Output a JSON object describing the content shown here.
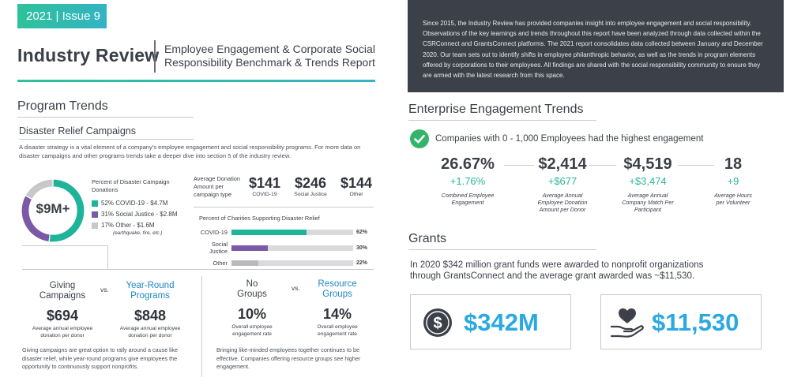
{
  "header": {
    "issue": "2021 | Issue 9",
    "title": "Industry Review",
    "subtitle_line1": "Employee Engagement & Corporate Social",
    "subtitle_line2": "Responsibility Benchmark & Trends Report"
  },
  "intro": "Since 2015, the Industry Review has provided companies insight into employee engagement and social responsibility. Observations of the key learnings and trends throughout this report have been analyzed through data collected within the CSRConnect and GrantsConnect platforms. The 2021 report consolidates data collected between January and December 2020. Our team sets out to identify shifts in employee philanthropic behavior, as well as the trends in program elements offered by corporations to their employees. All findings are shared with the social responsibility community to ensure they are armed with the latest research from this space.",
  "program_trends": {
    "heading": "Program Trends",
    "disaster": {
      "heading": "Disaster Relief Campaigns",
      "body": "A disaster strategy is a vital element of a company's employee engagement and social responsibility programs. For more data on disaster campaigns and other programs trends take a deeper dive into section 5 of the industry review.",
      "donut_total": "$9M+",
      "donut_title": "Percent of Disaster Campaign Donations",
      "legend": [
        {
          "label": "52% COVID-19 - $4.7M",
          "color": "#1fb39a"
        },
        {
          "label": "31% Social Justice - $2.8M",
          "color": "#7a5aa6"
        },
        {
          "label": "17% Other - $1.6M",
          "color": "#c7c8ca"
        }
      ],
      "legend_note": "(earthquake, fire, etc.)",
      "avg_donation_label": "Average Donation Amount per campaign type",
      "avg_donations": [
        {
          "amount": "$141",
          "label": "COVID-19"
        },
        {
          "amount": "$246",
          "label": "Social Justice"
        },
        {
          "amount": "$144",
          "label": "Other"
        }
      ],
      "charities_title": "Percent of Charities Supporting Disaster Relief",
      "charities": [
        {
          "label": "COVID-19",
          "pct_text": "62%",
          "value": 62,
          "color": "#1fb39a"
        },
        {
          "label": "Social Justice",
          "pct_text": "30%",
          "value": 30,
          "color": "#7a5aa6"
        },
        {
          "label": "Other",
          "pct_text": "22%",
          "value": 22,
          "color": "#b9babc"
        }
      ]
    },
    "giving": {
      "left_head_line1": "Giving",
      "left_head_line2": "Campaigns",
      "vs": "vs.",
      "right_head_line1": "Year-Round",
      "right_head_line2": "Programs",
      "left_amt": "$694",
      "right_amt": "$848",
      "note_line1": "Average annual employee",
      "note_line2": "donation per donor",
      "body": "Giving campaigns are great option to rally around a cause like disaster relief, while year-round programs give employees the opportunity to continuously support nonprofits."
    },
    "groups": {
      "left_head_line1": "No",
      "left_head_line2": "Groups",
      "vs": "vs.",
      "right_head_line1": "Resource",
      "right_head_line2": "Groups",
      "left_amt": "10%",
      "right_amt": "14%",
      "note_line1": "Overall employee",
      "note_line2": "engagement rate",
      "body": "Bringing like-minded employees together continues to be effective. Companies offering resource groups see higher engagement."
    }
  },
  "enterprise": {
    "heading": "Enterprise Engagement Trends",
    "highlight": "Companies with 0 - 1,000 Employees had the highest engagement",
    "stats": [
      {
        "value": "26.67%",
        "delta": "+1.76%",
        "note_line1": "Combined Employee",
        "note_line2": "Engagement",
        "note_line3": ""
      },
      {
        "value": "$2,414",
        "delta": "+$677",
        "note_line1": "Average Annual",
        "note_line2": "Employee Donation",
        "note_line3": "Amount per Donor"
      },
      {
        "value": "$4,519",
        "delta": "+$3,474",
        "note_line1": "Average Annual",
        "note_line2": "Company Match Per",
        "note_line3": "Participant"
      },
      {
        "value": "18",
        "delta": "+9",
        "note_line1": "Average Hours",
        "note_line2": "per Volunteer",
        "note_line3": ""
      }
    ]
  },
  "grants": {
    "heading": "Grants",
    "line1": "In 2020 $342 million grant funds were awarded to nonprofit organizations",
    "line2": "through GrantsConnect and the average grant awarded was ~$11,530.",
    "card1_value": "$342M",
    "card2_value": "$11,530"
  },
  "colors": {
    "accent_green": "#2ec29a",
    "accent_blue": "#2aa9e0",
    "dark_box": "#3c4048",
    "covid": "#1fb39a",
    "social_justice": "#7a5aa6"
  },
  "icons": [
    "check-circle-icon",
    "dollar-coin-icon",
    "heart-hand-icon"
  ]
}
